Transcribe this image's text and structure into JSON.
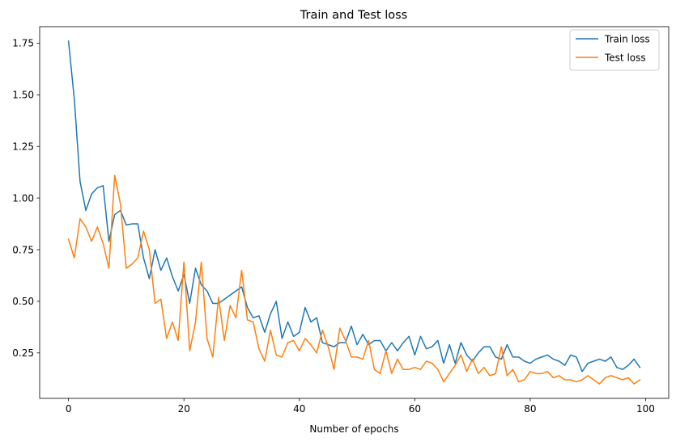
{
  "chart_data": {
    "type": "line",
    "title": "Train and Test loss",
    "xlabel": "Number of epochs",
    "ylabel": "",
    "xlim": [
      -5,
      104
    ],
    "ylim": [
      0.03,
      1.83
    ],
    "xticks": [
      0,
      20,
      40,
      60,
      80,
      100
    ],
    "xtick_labels": [
      "0",
      "20",
      "40",
      "60",
      "80",
      "100"
    ],
    "yticks": [
      0.25,
      0.5,
      0.75,
      1.0,
      1.25,
      1.5,
      1.75
    ],
    "ytick_labels": [
      "0.25",
      "0.50",
      "0.75",
      "1.00",
      "1.25",
      "1.50",
      "1.75"
    ],
    "grid": false,
    "legend_position": "top-right",
    "series": [
      {
        "name": "Train loss",
        "color": "#1f77b4",
        "values": [
          1.76,
          1.48,
          1.08,
          0.94,
          1.02,
          1.05,
          1.06,
          0.79,
          0.92,
          0.94,
          0.87,
          0.875,
          0.875,
          0.71,
          0.61,
          0.75,
          0.65,
          0.71,
          0.62,
          0.55,
          0.63,
          0.49,
          0.66,
          0.58,
          0.55,
          0.49,
          0.49,
          0.51,
          0.53,
          0.55,
          0.57,
          0.47,
          0.42,
          0.43,
          0.35,
          0.44,
          0.5,
          0.32,
          0.4,
          0.33,
          0.35,
          0.47,
          0.4,
          0.42,
          0.3,
          0.29,
          0.28,
          0.3,
          0.3,
          0.38,
          0.29,
          0.34,
          0.29,
          0.31,
          0.31,
          0.26,
          0.3,
          0.26,
          0.3,
          0.33,
          0.24,
          0.33,
          0.27,
          0.28,
          0.31,
          0.2,
          0.29,
          0.2,
          0.3,
          0.24,
          0.21,
          0.25,
          0.28,
          0.28,
          0.23,
          0.22,
          0.29,
          0.23,
          0.23,
          0.21,
          0.2,
          0.22,
          0.23,
          0.24,
          0.22,
          0.21,
          0.19,
          0.24,
          0.23,
          0.16,
          0.2,
          0.21,
          0.22,
          0.21,
          0.23,
          0.18,
          0.17,
          0.19,
          0.22,
          0.18
        ]
      },
      {
        "name": "Test loss",
        "color": "#ff7f0e",
        "values": [
          0.8,
          0.71,
          0.9,
          0.86,
          0.79,
          0.86,
          0.78,
          0.66,
          1.11,
          0.97,
          0.66,
          0.68,
          0.71,
          0.84,
          0.75,
          0.49,
          0.51,
          0.32,
          0.4,
          0.31,
          0.69,
          0.26,
          0.4,
          0.69,
          0.32,
          0.23,
          0.52,
          0.31,
          0.48,
          0.42,
          0.65,
          0.41,
          0.4,
          0.27,
          0.21,
          0.36,
          0.24,
          0.23,
          0.3,
          0.31,
          0.26,
          0.32,
          0.29,
          0.25,
          0.36,
          0.28,
          0.17,
          0.37,
          0.31,
          0.23,
          0.23,
          0.22,
          0.31,
          0.17,
          0.15,
          0.26,
          0.15,
          0.22,
          0.17,
          0.17,
          0.18,
          0.17,
          0.21,
          0.2,
          0.17,
          0.11,
          0.15,
          0.19,
          0.24,
          0.16,
          0.22,
          0.15,
          0.18,
          0.14,
          0.15,
          0.28,
          0.14,
          0.17,
          0.11,
          0.12,
          0.16,
          0.15,
          0.15,
          0.16,
          0.13,
          0.14,
          0.12,
          0.12,
          0.11,
          0.12,
          0.14,
          0.12,
          0.1,
          0.13,
          0.14,
          0.13,
          0.12,
          0.13,
          0.1,
          0.12
        ]
      }
    ]
  }
}
